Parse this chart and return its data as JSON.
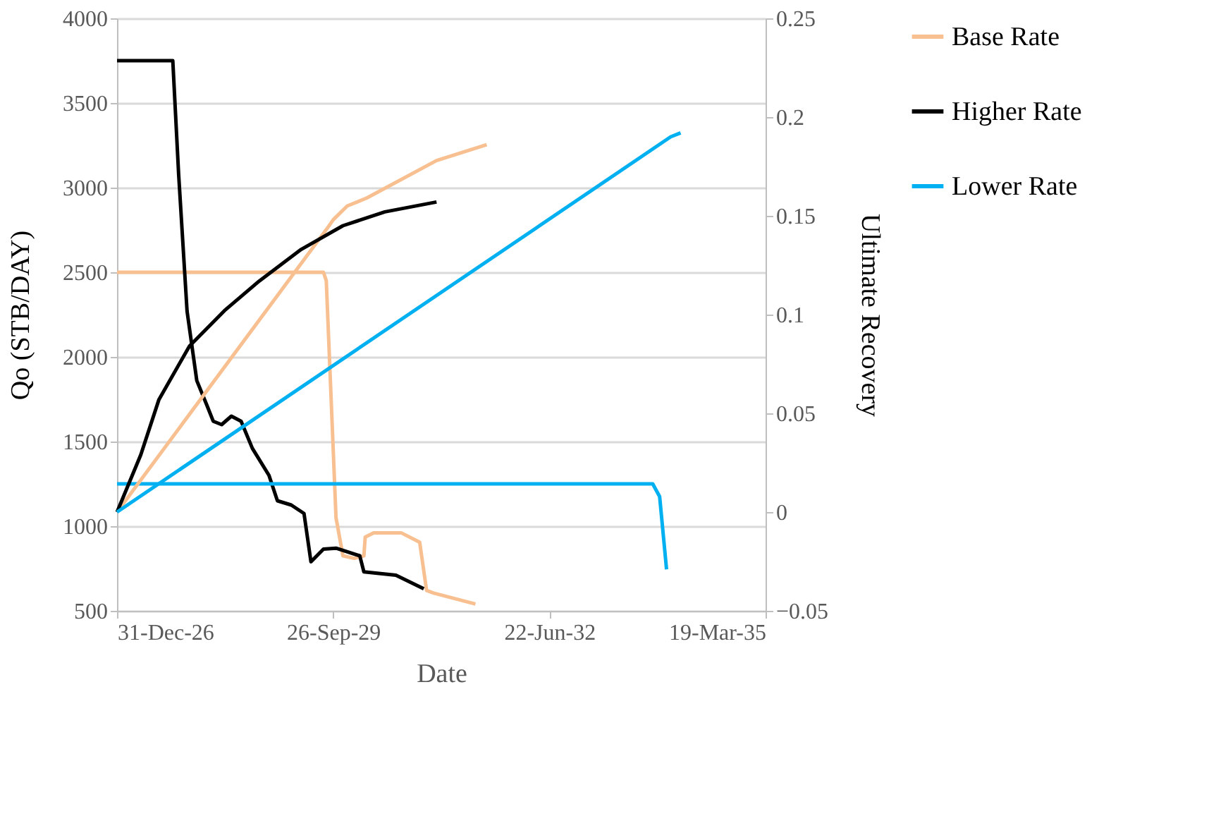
{
  "chart_data": {
    "type": "line",
    "xlabel": "Date",
    "ylabel": "Qo (STB/DAY)",
    "y2label": "Ultimate Recovery",
    "xlim": [
      "2026-12-31",
      "2035-03-19"
    ],
    "xticks": [
      {
        "value": "2026-12-31",
        "label": "31-Dec-26"
      },
      {
        "value": "2029-09-26",
        "label": "26-Sep-29"
      },
      {
        "value": "2032-06-22",
        "label": "22-Jun-32"
      },
      {
        "value": "2035-03-19",
        "label": "19-Mar-35"
      }
    ],
    "ylim": [
      500,
      4000
    ],
    "yticks": [
      500,
      1000,
      1500,
      2000,
      2500,
      3000,
      3500,
      4000
    ],
    "y2lim": [
      -0.05,
      0.25
    ],
    "y2ticks": [
      -0.05,
      0,
      0.05,
      0.1,
      0.15,
      0.2,
      0.25
    ],
    "grid": "y",
    "legend": "right",
    "line_style": "solid",
    "marker": "none",
    "series": [
      {
        "name": "Base Rate",
        "color": "#f8c090",
        "x": [
          "2026-12-31",
          "2029-08-12",
          "2029-08-25",
          "2029-10-09",
          "2029-11-10",
          "2030-01-01",
          "2030-02-15",
          "2030-02-21",
          "2030-04-01",
          "2030-08-08",
          "2030-10-31",
          "2030-12-02",
          "2031-01-04",
          "2031-07-16"
        ],
        "values": [
          2500,
          2500,
          2450,
          1050,
          825,
          810,
          825,
          935,
          960,
          960,
          905,
          620,
          605,
          540
        ]
      },
      {
        "name": "Higher Rate",
        "color": "#000000",
        "x": [
          "2026-12-31",
          "2027-09-15",
          "2027-10-12",
          "2027-11-20",
          "2028-01-04",
          "2028-02-18",
          "2028-03-20",
          "2028-04-28",
          "2028-06-12",
          "2028-07-27",
          "2028-09-17",
          "2028-12-03",
          "2029-01-11",
          "2029-03-16",
          "2029-05-14",
          "2029-06-15",
          "2029-08-12",
          "2029-10-09",
          "2030-01-27",
          "2030-02-15",
          "2030-07-13",
          "2030-11-19"
        ],
        "values": [
          3750,
          3750,
          3080,
          2270,
          1860,
          1720,
          1620,
          1600,
          1650,
          1620,
          1460,
          1300,
          1150,
          1125,
          1075,
          790,
          865,
          870,
          825,
          730,
          710,
          630
        ]
      },
      {
        "name": "Lower Rate",
        "color": "#00b0f0",
        "x": [
          "2026-12-31",
          "2033-10-13",
          "2033-11-14",
          "2033-12-16"
        ],
        "values": [
          1250,
          1250,
          1175,
          745
        ]
      },
      {
        "color": "#f8c090",
        "axis": "y2",
        "x": [
          "2026-12-31",
          "2029-08-25",
          "2029-09-26",
          "2029-11-30",
          "2030-02-28",
          "2031-01-17",
          "2031-09-06"
        ],
        "values": [
          0,
          0.143,
          0.148,
          0.155,
          0.159,
          0.178,
          0.186
        ]
      },
      {
        "color": "#000000",
        "axis": "y2",
        "x": [
          "2026-12-31",
          "2027-04-20",
          "2027-07-13",
          "2027-12-01",
          "2028-05-11",
          "2028-10-19",
          "2029-05-01",
          "2029-11-10",
          "2030-05-23",
          "2031-01-17"
        ],
        "values": [
          0,
          0.029,
          0.057,
          0.084,
          0.102,
          0.117,
          0.133,
          0.145,
          0.152,
          0.157
        ]
      },
      {
        "color": "#00b0f0",
        "axis": "y2",
        "x": [
          "2026-12-31",
          "2034-01-04",
          "2034-02-19"
        ],
        "values": [
          0,
          0.19,
          0.192
        ]
      }
    ]
  }
}
